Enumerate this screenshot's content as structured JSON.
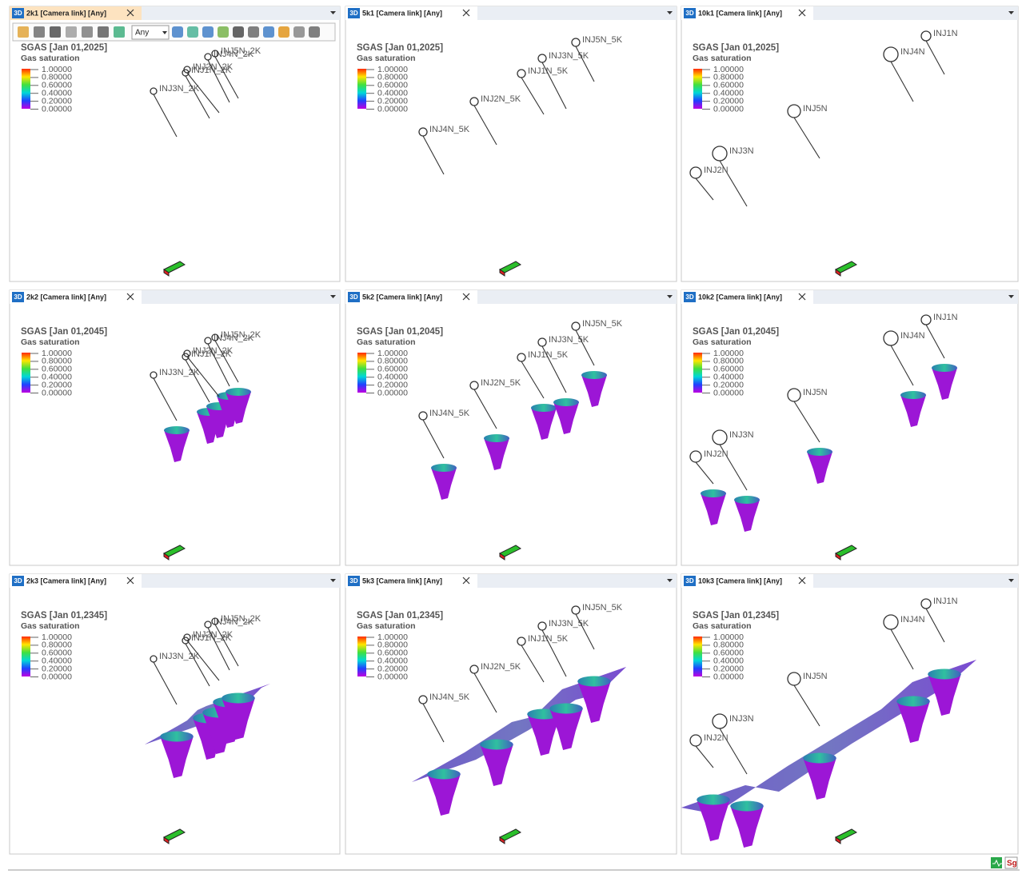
{
  "badge": "3D",
  "legend_ticks": [
    "1.00000",
    "0.80000",
    "0.60000",
    "0.40000",
    "0.20000",
    "0.00000"
  ],
  "toolbar": {
    "filter": "Any"
  },
  "status_icon": "Sg",
  "panels": [
    {
      "tab": "2k1 [Camera link]  [Any]",
      "title": "SGAS [Jan 01,2025]",
      "subtitle": "Gas saturation",
      "wells": [
        "INJ3N_2K",
        "INJ1N_2K",
        "INJ2N_2K",
        "INJ4N_2K",
        "INJ5N_2K"
      ]
    },
    {
      "tab": "5k1 [Camera link]  [Any]",
      "title": "SGAS [Jan 01,2025]",
      "subtitle": "Gas saturation",
      "wells": [
        "INJ4N_5K",
        "INJ2N_5K",
        "INJ1N_5K",
        "INJ3N_5K",
        "INJ5N_5K"
      ]
    },
    {
      "tab": "10k1 [Camera link]  [Any]",
      "title": "SGAS [Jan 01,2025]",
      "subtitle": "Gas saturation",
      "wells": [
        "INJ1N",
        "INJ4N",
        "INJ5N",
        "INJ3N",
        "INJ2N"
      ]
    },
    {
      "tab": "2k2 [Camera link]  [Any]",
      "title": "SGAS [Jan 01,2045]",
      "subtitle": "Gas saturation",
      "wells": [
        "INJ3N_2K",
        "INJ1N_2K",
        "INJ2N_2K",
        "INJ4N_2K",
        "INJ5N_2K"
      ]
    },
    {
      "tab": "5k2 [Camera link]  [Any]",
      "title": "SGAS [Jan 01,2045]",
      "subtitle": "Gas saturation",
      "wells": [
        "INJ4N_5K",
        "INJ2N_5K",
        "INJ1N_5K",
        "INJ3N_5K",
        "INJ5N_5K"
      ]
    },
    {
      "tab": "10k2 [Camera link]  [Any]",
      "title": "SGAS [Jan 01,2045]",
      "subtitle": "Gas saturation",
      "wells": [
        "INJ1N",
        "INJ4N",
        "INJ5N",
        "INJ3N",
        "INJ2N"
      ]
    },
    {
      "tab": "2k3 [Camera link]  [Any]",
      "title": "SGAS [Jan 01,2345]",
      "subtitle": "Gas saturation",
      "wells": [
        "INJ3N_2K",
        "INJ1N_2K",
        "INJ2N_2K",
        "INJ4N_2K",
        "INJ5N_2K"
      ]
    },
    {
      "tab": "5k3 [Camera link]  [Any]",
      "title": "SGAS [Jan 01,2345]",
      "subtitle": "Gas saturation",
      "wells": [
        "INJ4N_5K",
        "INJ2N_5K",
        "INJ1N_5K",
        "INJ3N_5K",
        "INJ5N_5K"
      ]
    },
    {
      "tab": "10k3 [Camera link]  [Any]",
      "title": "SGAS [Jan 01,2345]",
      "subtitle": "Gas saturation",
      "wells": [
        "INJ1N",
        "INJ4N",
        "INJ5N",
        "INJ3N",
        "INJ2N"
      ]
    }
  ]
}
